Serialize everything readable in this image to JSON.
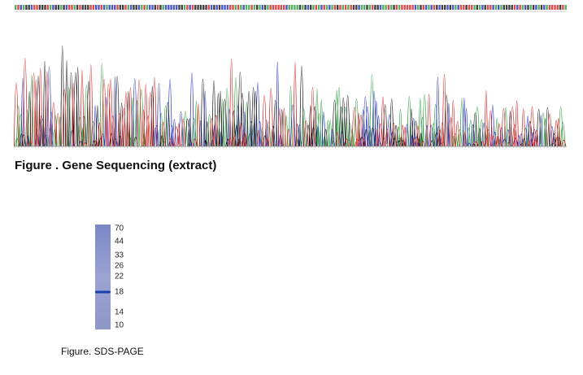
{
  "figures": [
    {
      "caption": "Figure . Gene Sequencing (extract)"
    },
    {
      "caption": "Figure. SDS-PAGE",
      "markers": [
        "70",
        "44",
        "33",
        "26",
        "22",
        "18",
        "14",
        "10"
      ]
    }
  ]
}
